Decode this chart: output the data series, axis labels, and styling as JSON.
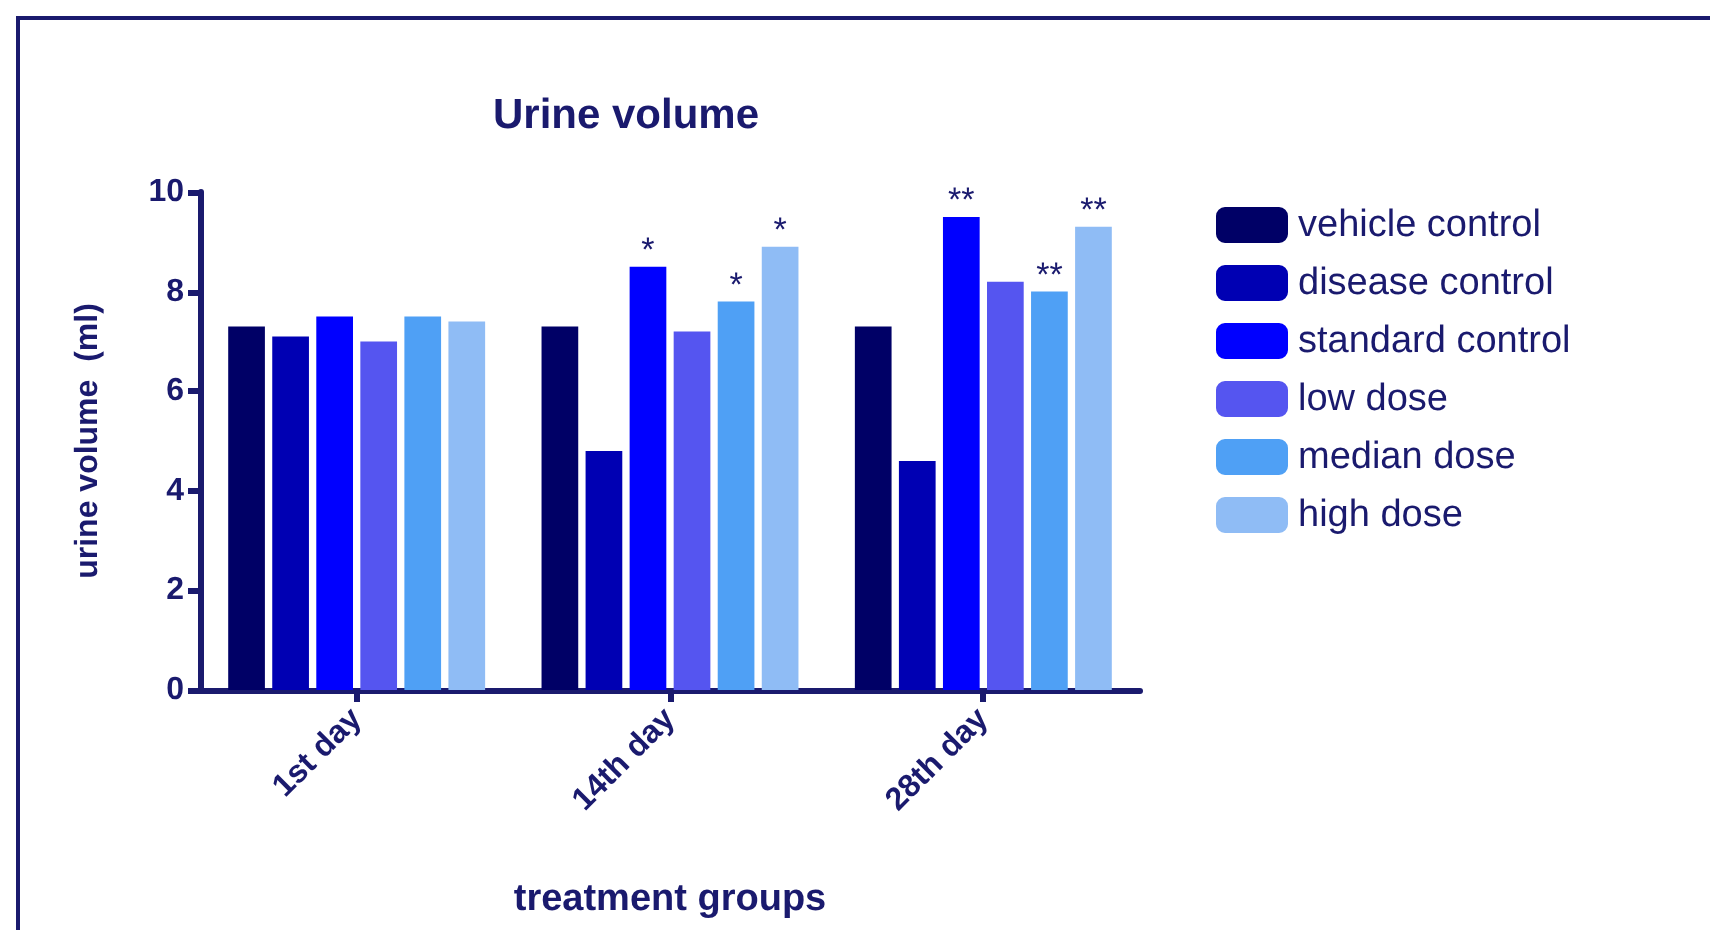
{
  "chart_data": {
    "type": "bar",
    "title": "Urine volume",
    "xlabel": "treatment groups",
    "ylabel": "urine volume  (ml)",
    "categories": [
      "1st day",
      "14th day",
      "28th day"
    ],
    "series": [
      {
        "name": "vehicle control",
        "color": "#000066",
        "values": [
          7.3,
          7.3,
          7.3
        ]
      },
      {
        "name": "disease control",
        "color": "#0000b3",
        "values": [
          7.1,
          4.8,
          4.6
        ]
      },
      {
        "name": "standard control",
        "color": "#0000ff",
        "values": [
          7.5,
          8.5,
          9.5
        ],
        "value_labels": [
          null,
          "*",
          "**"
        ]
      },
      {
        "name": "low dose",
        "color": "#5555f0",
        "values": [
          7.0,
          7.2,
          8.2
        ]
      },
      {
        "name": "median dose",
        "color": "#4fa0f5",
        "values": [
          7.5,
          7.8,
          8.0
        ],
        "value_labels": [
          null,
          "*",
          "**"
        ]
      },
      {
        "name": "high dose",
        "color": "#8fbcf5",
        "values": [
          7.4,
          8.9,
          9.3
        ],
        "value_labels": [
          null,
          "*",
          "**"
        ]
      }
    ],
    "ylim": [
      0,
      10
    ],
    "yticks": [
      0,
      2,
      4,
      6,
      8,
      10
    ],
    "grid": false,
    "legend": "right"
  }
}
